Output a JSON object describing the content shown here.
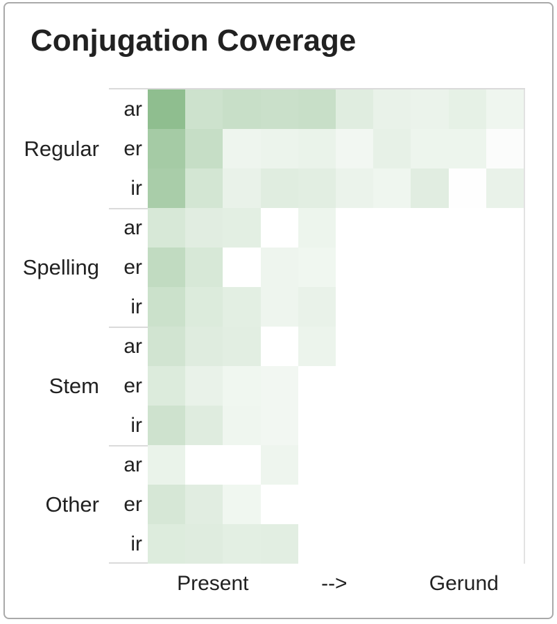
{
  "title": "Conjugation Coverage",
  "colors": {
    "card_border": "#a9a9a9",
    "text": "#212121",
    "divider": "#dadada",
    "grid_border": "#e2e2e2",
    "cell_min": "#ffffff",
    "cell_max": "#8fbe8f"
  },
  "chart_data": {
    "type": "heatmap",
    "title": "Conjugation Coverage",
    "color_min": "#ffffff",
    "color_max": "#8fbe8f",
    "value_scale": "relative coverage intensity per cell, 0 = white (no coverage) to 1 = darkest green, estimated from shading",
    "row_groups": [
      {
        "label": "Regular",
        "rows": [
          "ar",
          "er",
          "ir"
        ]
      },
      {
        "label": "Spelling",
        "rows": [
          "ar",
          "er",
          "ir"
        ]
      },
      {
        "label": "Stem",
        "rows": [
          "ar",
          "er",
          "ir"
        ]
      },
      {
        "label": "Other",
        "rows": [
          "ar",
          "er",
          "ir"
        ]
      }
    ],
    "n_columns": 10,
    "x_axis_labels": [
      {
        "text": "Present",
        "position": 0.173
      },
      {
        "text": "-->",
        "position": 0.496
      },
      {
        "text": "Gerund",
        "position": 0.841
      }
    ],
    "values": [
      [
        1.0,
        0.45,
        0.49,
        0.47,
        0.49,
        0.28,
        0.2,
        0.18,
        0.22,
        0.14
      ],
      [
        0.8,
        0.51,
        0.15,
        0.17,
        0.19,
        0.12,
        0.21,
        0.16,
        0.16,
        0.04
      ],
      [
        0.77,
        0.39,
        0.2,
        0.28,
        0.26,
        0.18,
        0.14,
        0.27,
        0.01,
        0.2
      ],
      [
        0.36,
        0.27,
        0.25,
        0.0,
        0.16,
        0.0,
        0.0,
        0.0,
        0.0,
        0.0
      ],
      [
        0.55,
        0.36,
        0.0,
        0.15,
        0.13,
        0.0,
        0.0,
        0.0,
        0.0,
        0.0
      ],
      [
        0.46,
        0.31,
        0.25,
        0.15,
        0.2,
        0.0,
        0.0,
        0.0,
        0.0,
        0.0
      ],
      [
        0.41,
        0.29,
        0.26,
        0.0,
        0.17,
        0.0,
        0.0,
        0.0,
        0.0,
        0.0
      ],
      [
        0.31,
        0.2,
        0.13,
        0.12,
        0.0,
        0.0,
        0.0,
        0.0,
        0.0,
        0.0
      ],
      [
        0.44,
        0.29,
        0.14,
        0.12,
        0.0,
        0.0,
        0.0,
        0.0,
        0.0,
        0.0
      ],
      [
        0.19,
        0.0,
        0.0,
        0.15,
        0.0,
        0.0,
        0.0,
        0.0,
        0.0,
        0.0
      ],
      [
        0.37,
        0.27,
        0.13,
        0.0,
        0.0,
        0.0,
        0.0,
        0.0,
        0.0,
        0.0
      ],
      [
        0.3,
        0.29,
        0.25,
        0.26,
        0.0,
        0.0,
        0.0,
        0.0,
        0.0,
        0.0
      ]
    ],
    "legend": "none",
    "grid_lines": "none"
  }
}
